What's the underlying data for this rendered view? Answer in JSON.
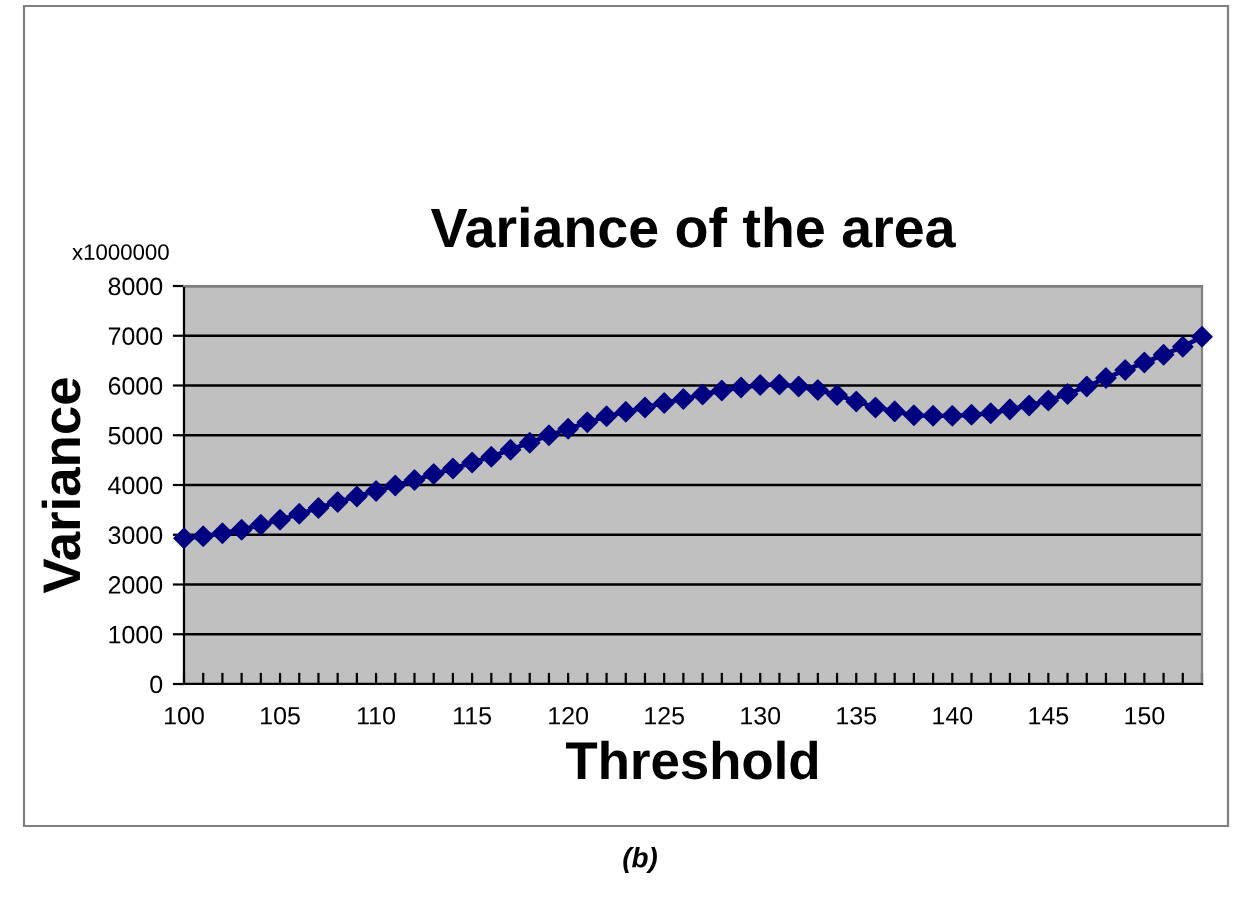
{
  "chart_data": {
    "type": "line",
    "title": "Variance of the area",
    "xlabel": "Threshold",
    "ylabel": "Variance",
    "annotations": [
      "x1000000",
      "(b)"
    ],
    "x": [
      100,
      101,
      102,
      103,
      104,
      105,
      106,
      107,
      108,
      109,
      110,
      111,
      112,
      113,
      114,
      115,
      116,
      117,
      118,
      119,
      120,
      121,
      122,
      123,
      124,
      125,
      126,
      127,
      128,
      129,
      130,
      131,
      132,
      133,
      134,
      135,
      136,
      137,
      138,
      139,
      140,
      141,
      142,
      143,
      144,
      145,
      146,
      147,
      148,
      149,
      150,
      151,
      152,
      153
    ],
    "series": [
      {
        "color": "#000080",
        "values": [
          2930,
          2970,
          3030,
          3100,
          3200,
          3300,
          3420,
          3540,
          3660,
          3770,
          3880,
          3990,
          4100,
          4220,
          4330,
          4450,
          4570,
          4710,
          4850,
          5000,
          5130,
          5260,
          5380,
          5470,
          5560,
          5650,
          5730,
          5820,
          5900,
          5960,
          6010,
          6020,
          5980,
          5910,
          5810,
          5680,
          5560,
          5480,
          5400,
          5390,
          5390,
          5410,
          5440,
          5520,
          5600,
          5700,
          5830,
          5980,
          6150,
          6310,
          6460,
          6620,
          6780,
          6980
        ]
      }
    ],
    "xlim": [
      100,
      153
    ],
    "ylim": [
      0,
      8000
    ],
    "xticks": [
      100,
      {
        "value": 101,
        "label": null
      },
      {
        "value": 102,
        "label": null
      },
      {
        "value": 103,
        "label": null
      },
      {
        "value": 104,
        "label": null
      },
      105,
      {
        "value": 106,
        "label": null
      },
      {
        "value": 107,
        "label": null
      },
      {
        "value": 108,
        "label": null
      },
      {
        "value": 109,
        "label": null
      },
      110,
      {
        "value": 111,
        "label": null
      },
      {
        "value": 112,
        "label": null
      },
      {
        "value": 113,
        "label": null
      },
      {
        "value": 114,
        "label": null
      },
      115,
      {
        "value": 116,
        "label": null
      },
      {
        "value": 117,
        "label": null
      },
      {
        "value": 118,
        "label": null
      },
      {
        "value": 119,
        "label": null
      },
      120,
      {
        "value": 121,
        "label": null
      },
      {
        "value": 122,
        "label": null
      },
      {
        "value": 123,
        "label": null
      },
      {
        "value": 124,
        "label": null
      },
      125,
      {
        "value": 126,
        "label": null
      },
      {
        "value": 127,
        "label": null
      },
      {
        "value": 128,
        "label": null
      },
      {
        "value": 129,
        "label": null
      },
      130,
      {
        "value": 131,
        "label": null
      },
      {
        "value": 132,
        "label": null
      },
      {
        "value": 133,
        "label": null
      },
      {
        "value": 134,
        "label": null
      },
      135,
      {
        "value": 136,
        "label": null
      },
      {
        "value": 137,
        "label": null
      },
      {
        "value": 138,
        "label": null
      },
      {
        "value": 139,
        "label": null
      },
      140,
      {
        "value": 141,
        "label": null
      },
      {
        "value": 142,
        "label": null
      },
      {
        "value": 143,
        "label": null
      },
      {
        "value": 144,
        "label": null
      },
      145,
      {
        "value": 146,
        "label": null
      },
      {
        "value": 147,
        "label": null
      },
      {
        "value": 148,
        "label": null
      },
      {
        "value": 149,
        "label": null
      },
      150,
      {
        "value": 151,
        "label": null
      },
      {
        "value": 152,
        "label": null
      },
      {
        "value": 153,
        "label": null
      }
    ],
    "yticks": [
      0,
      1000,
      2000,
      3000,
      4000,
      5000,
      6000,
      7000,
      8000
    ],
    "grid": "y",
    "marker": "diamond",
    "line_style": "solid",
    "legend": false
  }
}
